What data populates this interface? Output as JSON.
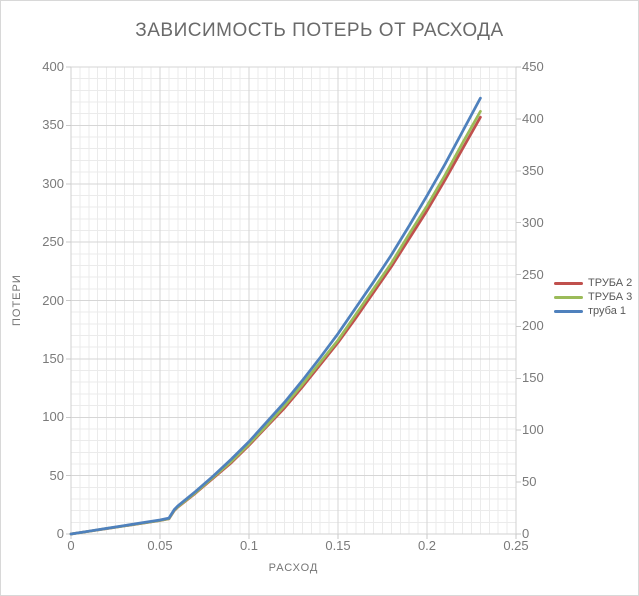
{
  "window": {
    "background": "#FFFFFF",
    "border_color": "#D8D8D8"
  },
  "colors": {
    "grid_minor": "#EBEBEB",
    "grid_major": "#D6D6D6",
    "axis_line": "#D2D2D2",
    "tick_mark": "#C9C9C9",
    "title_text": "#6A6A6A",
    "axis_title_text": "#757575",
    "tick_text": "#7A7A7A",
    "legend_text": "#595959"
  },
  "chart_data": {
    "type": "line",
    "title": "ЗАВИСИМОСТЬ ПОТЕРЬ ОТ РАСХОДА",
    "xlabel": "РАСХОД",
    "ylabel": "ПОТЕРИ",
    "grid": true,
    "legend_position": "right",
    "x_range": [
      0,
      0.25
    ],
    "y_left_range": [
      0,
      400
    ],
    "y_right_range": [
      0,
      450
    ],
    "x_major_step": 0.05,
    "x_minor_step": 0.005,
    "y_major_step": 50,
    "y_minor_step": 10,
    "x_ticks": [
      0,
      0.05,
      0.1,
      0.15,
      0.2,
      0.25
    ],
    "y_left_ticks": [
      0,
      50,
      100,
      150,
      200,
      250,
      300,
      350,
      400
    ],
    "y_right_ticks": [
      0,
      50,
      100,
      150,
      200,
      250,
      300,
      350,
      400,
      450
    ],
    "x": [
      0,
      0.01,
      0.02,
      0.03,
      0.04,
      0.05,
      0.055,
      0.058,
      0.06,
      0.07,
      0.08,
      0.09,
      0.1,
      0.11,
      0.12,
      0.13,
      0.14,
      0.15,
      0.16,
      0.17,
      0.18,
      0.19,
      0.2,
      0.21,
      0.22,
      0.23
    ],
    "series": [
      {
        "name": "ТРУБА 2",
        "color": "#C0504D",
        "axis": "left",
        "values": [
          0,
          2.3,
          4.6,
          6.9,
          9.2,
          11.5,
          13,
          20,
          23,
          35,
          48,
          61,
          76,
          92,
          108,
          126,
          145,
          164,
          185,
          207,
          229,
          253,
          277,
          303,
          330,
          357
        ]
      },
      {
        "name": "ТРУБА 3",
        "color": "#9BBB59",
        "axis": "left",
        "values": [
          0,
          2.3,
          4.7,
          7.0,
          9.3,
          11.7,
          13.2,
          20.3,
          23.3,
          35.5,
          48.7,
          62,
          77,
          93,
          110,
          128,
          147,
          166,
          188,
          210,
          232,
          257,
          281,
          307,
          335,
          362
        ]
      },
      {
        "name": "труба 1",
        "color": "#4F81BD",
        "axis": "right",
        "values": [
          0,
          2.7,
          5.4,
          8.1,
          10.8,
          13.5,
          15.3,
          23.5,
          27,
          41,
          56,
          72,
          89,
          108,
          127,
          148,
          170,
          193,
          218,
          243,
          269,
          297,
          326,
          356,
          388,
          420
        ]
      }
    ]
  }
}
